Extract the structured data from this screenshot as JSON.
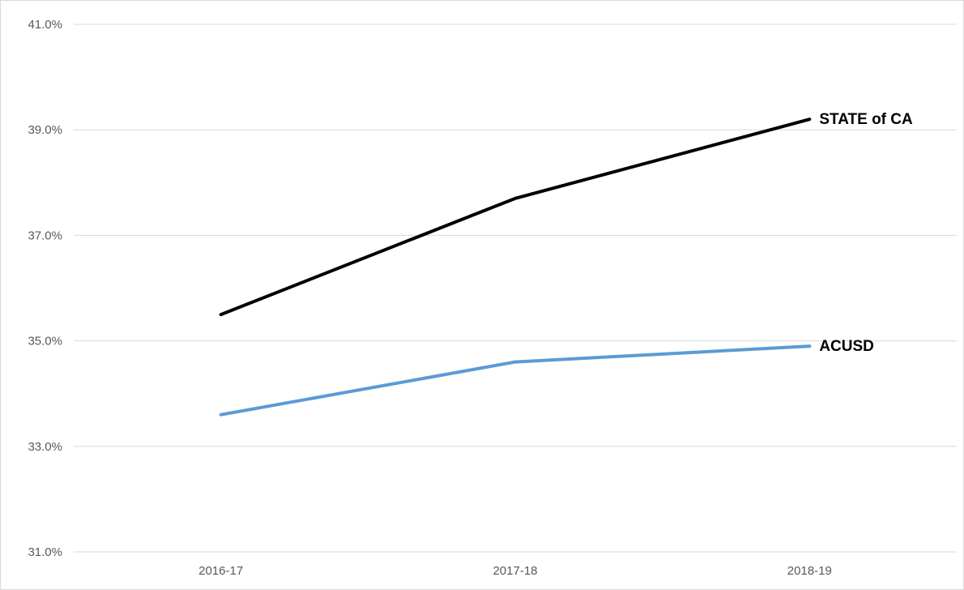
{
  "chart_data": {
    "type": "line",
    "title": "",
    "xlabel": "",
    "ylabel": "",
    "categories": [
      "2016-17",
      "2017-18",
      "2018-19"
    ],
    "ylim": [
      31.0,
      41.0
    ],
    "yticks": [
      31.0,
      33.0,
      35.0,
      37.0,
      39.0,
      41.0
    ],
    "ytick_labels": [
      "31.0%",
      "33.0%",
      "35.0%",
      "37.0%",
      "39.0%",
      "41.0%"
    ],
    "grid": true,
    "legend": "none",
    "series": [
      {
        "name": "STATE of CA",
        "values": [
          35.5,
          37.7,
          39.2
        ],
        "color": "#000000",
        "label_position": "end"
      },
      {
        "name": "ACUSD",
        "values": [
          33.6,
          34.6,
          34.9
        ],
        "color": "#5b9bd5",
        "label_position": "end"
      }
    ]
  }
}
